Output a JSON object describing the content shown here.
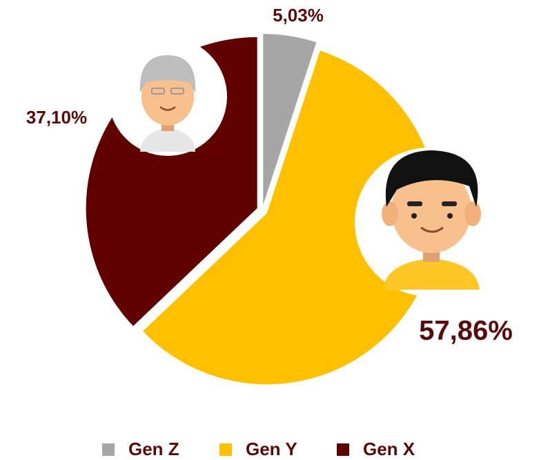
{
  "chart_data": {
    "type": "pie",
    "categories": [
      "Gen Z",
      "Gen Y",
      "Gen X"
    ],
    "values": [
      5.03,
      57.86,
      37.1
    ],
    "value_labels": [
      "5,03%",
      "57,86%",
      "37,10%"
    ],
    "colors": [
      "#a6a6a6",
      "#ffc000",
      "#600000"
    ],
    "legend": "bottom"
  }
}
